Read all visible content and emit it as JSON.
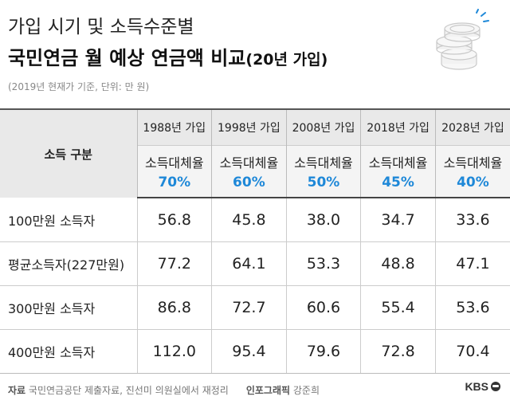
{
  "header": {
    "title_line1": "가입 시기 및 소득수준별",
    "title_line2_main": "국민연금 월 예상 연금액 비교",
    "title_line2_sub": "(20년 가입)",
    "note": "(2019년 현재가 기준, 단위: 만 원)",
    "illustration": "coin-stack-icon"
  },
  "chart_data": {
    "type": "table",
    "title": "국민연금 월 예상 연금액 비교(20년 가입)",
    "unit": "만 원",
    "row_header": "소득 구분",
    "ratio_label": "소득대체율",
    "columns": [
      {
        "year": "1988년 가입",
        "ratio": "70%"
      },
      {
        "year": "1998년 가입",
        "ratio": "60%"
      },
      {
        "year": "2008년 가입",
        "ratio": "50%"
      },
      {
        "year": "2018년 가입",
        "ratio": "45%"
      },
      {
        "year": "2028년 가입",
        "ratio": "40%"
      }
    ],
    "rows": [
      {
        "label": "100만원 소득자",
        "values": [
          "56.8",
          "45.8",
          "38.0",
          "34.7",
          "33.6"
        ]
      },
      {
        "label": "평균소득자(227만원)",
        "values": [
          "77.2",
          "64.1",
          "53.3",
          "48.8",
          "47.1"
        ]
      },
      {
        "label": "300만원 소득자",
        "values": [
          "86.8",
          "72.7",
          "60.6",
          "55.4",
          "53.6"
        ]
      },
      {
        "label": "400만원 소득자",
        "values": [
          "112.0",
          "95.4",
          "79.6",
          "72.8",
          "70.4"
        ]
      }
    ],
    "colors": {
      "ratio": "#1e88d8",
      "header_bg": "#e9e9e9"
    }
  },
  "footer": {
    "source_label": "자료",
    "source_text": "국민연금공단 제출자료, 진선미 의원실에서 재정리",
    "graphic_label": "인포그래픽",
    "graphic_author": "강준희",
    "brand": "KBS"
  }
}
